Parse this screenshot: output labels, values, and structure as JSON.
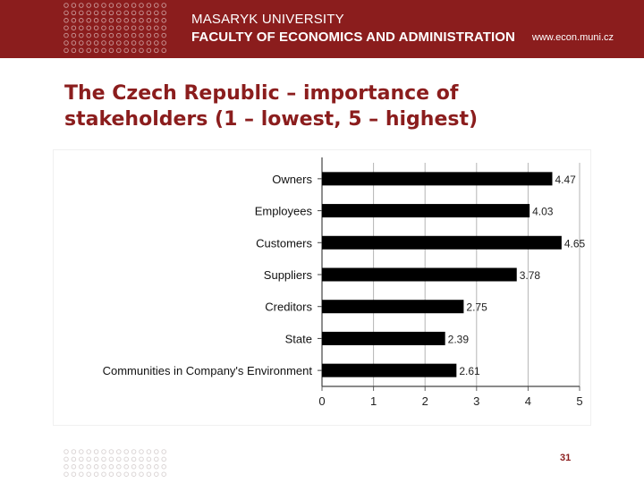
{
  "header": {
    "university": "MASARYK UNIVERSITY",
    "faculty": "FACULTY OF ECONOMICS AND ADMINISTRATION",
    "url": "www.econ.muni.cz",
    "background_color": "#8b1d1d"
  },
  "title": {
    "line1": "The Czech Republic – importance of",
    "line2": "stakeholders (1 – lowest, 5 – highest)",
    "color": "#8b1d1d"
  },
  "chart_data": {
    "type": "bar",
    "orientation": "horizontal",
    "categories": [
      "Owners",
      "Employees",
      "Customers",
      "Suppliers",
      "Creditors",
      "State",
      "Communities in Company's Environment"
    ],
    "values": [
      4.47,
      4.03,
      4.65,
      3.78,
      2.75,
      2.39,
      2.61
    ],
    "value_labels": [
      "4.47",
      "4.03",
      "4.65",
      "3.78",
      "2.75",
      "2.39",
      "2.61"
    ],
    "xlim": [
      0,
      5
    ],
    "x_ticks": [
      "0",
      "1",
      "2",
      "3",
      "4",
      "5"
    ],
    "grid": true,
    "bar_color": "#000000",
    "title": "",
    "xlabel": "",
    "ylabel": ""
  },
  "footer": {
    "page_number": "31"
  }
}
